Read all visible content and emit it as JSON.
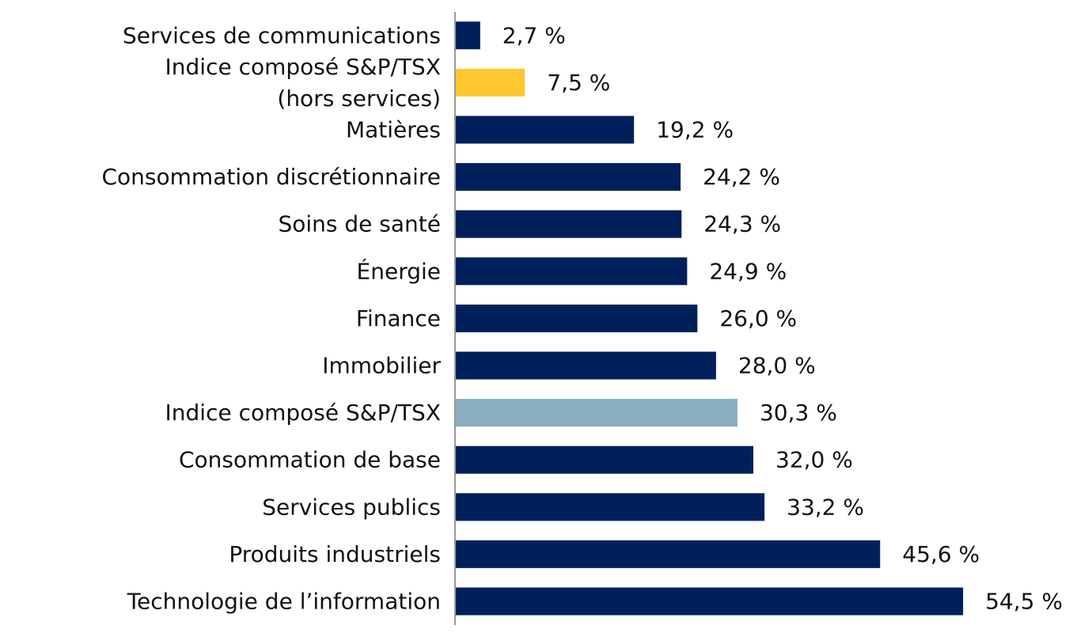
{
  "chart_data": {
    "type": "bar",
    "orientation": "horizontal",
    "title": "",
    "xlabel": "",
    "ylabel": "",
    "grid": false,
    "legend": "none",
    "xlim": [
      0,
      55
    ],
    "value_suffix": " %",
    "decimal_separator": ",",
    "categories": [
      [
        "Services de communications"
      ],
      [
        "Indice composé S&P/TSX",
        "(hors services)"
      ],
      [
        "Matières"
      ],
      [
        "Consommation discrétionnaire"
      ],
      [
        "Soins de santé"
      ],
      [
        "Énergie"
      ],
      [
        "Finance"
      ],
      [
        "Immobilier"
      ],
      [
        "Indice composé S&P/TSX"
      ],
      [
        "Consommation de base"
      ],
      [
        "Services publics"
      ],
      [
        "Produits industriels"
      ],
      [
        "Technologie de l’information"
      ]
    ],
    "values": [
      2.7,
      7.5,
      19.2,
      24.2,
      24.3,
      24.9,
      26.0,
      28.0,
      30.3,
      32.0,
      33.2,
      45.6,
      54.5
    ],
    "value_labels": [
      "2,7 %",
      "7,5 %",
      "19,2 %",
      "24,2 %",
      "24,3 %",
      "24,9 %",
      "26,0 %",
      "28,0 %",
      "30,3 %",
      "32,0 %",
      "33,2 %",
      "45,6 %",
      "54,5 %"
    ],
    "bar_colors": [
      "#00205b",
      "#fdc82f",
      "#00205b",
      "#00205b",
      "#00205b",
      "#00205b",
      "#00205b",
      "#00205b",
      "#8aaec0",
      "#00205b",
      "#00205b",
      "#00205b",
      "#00205b"
    ],
    "axis_color": "#9a9a9a"
  }
}
